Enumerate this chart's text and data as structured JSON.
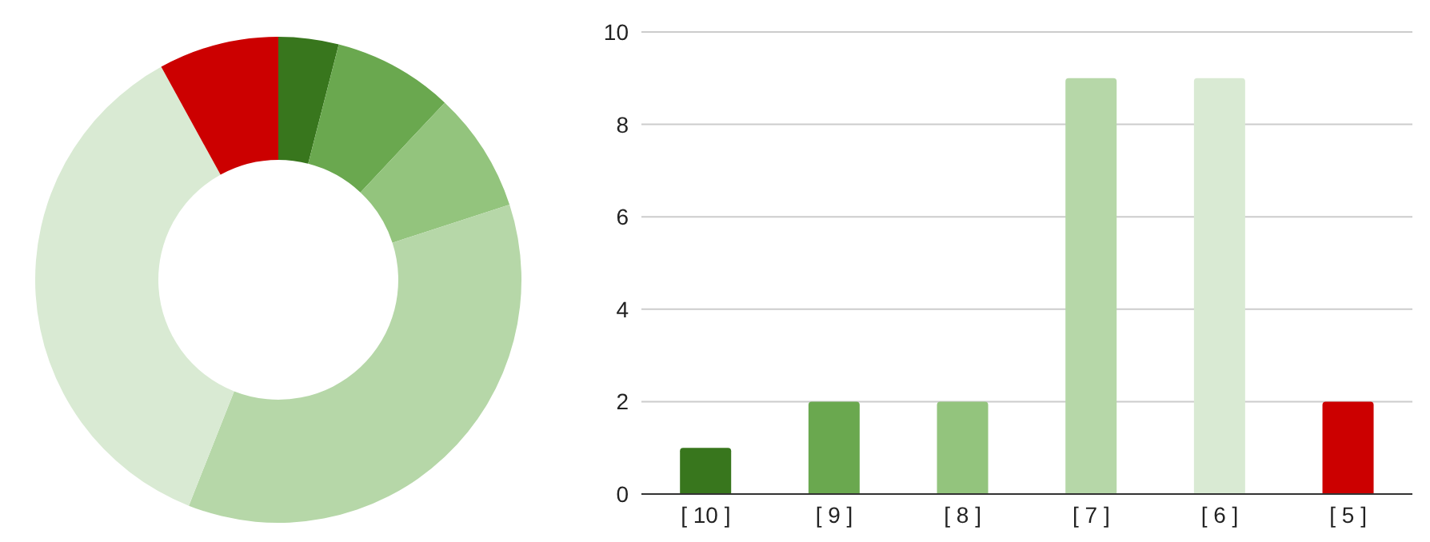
{
  "chart_data": [
    {
      "type": "donut",
      "categories": [
        null,
        null,
        null,
        null,
        null,
        null
      ],
      "values": [
        4,
        8,
        8,
        36,
        36,
        8
      ],
      "colors": [
        "#38761d",
        "#6aa84f",
        "#93c47d",
        "#b6d7a8",
        "#d9ead3",
        "#cc0000"
      ],
      "legend": false
    },
    {
      "type": "bar",
      "categories": [
        "[ 10 ]",
        "[ 9 ]",
        "[ 8 ]",
        "[ 7 ]",
        "[ 6 ]",
        "[ 5 ]"
      ],
      "values": [
        1,
        2,
        2,
        9,
        9,
        2
      ],
      "colors": [
        "#38761d",
        "#6aa84f",
        "#93c47d",
        "#b6d7a8",
        "#d9ead3",
        "#cc0000"
      ],
      "ylim": [
        0,
        10
      ],
      "yticks": [
        0,
        2,
        4,
        6,
        8,
        10
      ],
      "grid": "y",
      "legend": false
    }
  ]
}
